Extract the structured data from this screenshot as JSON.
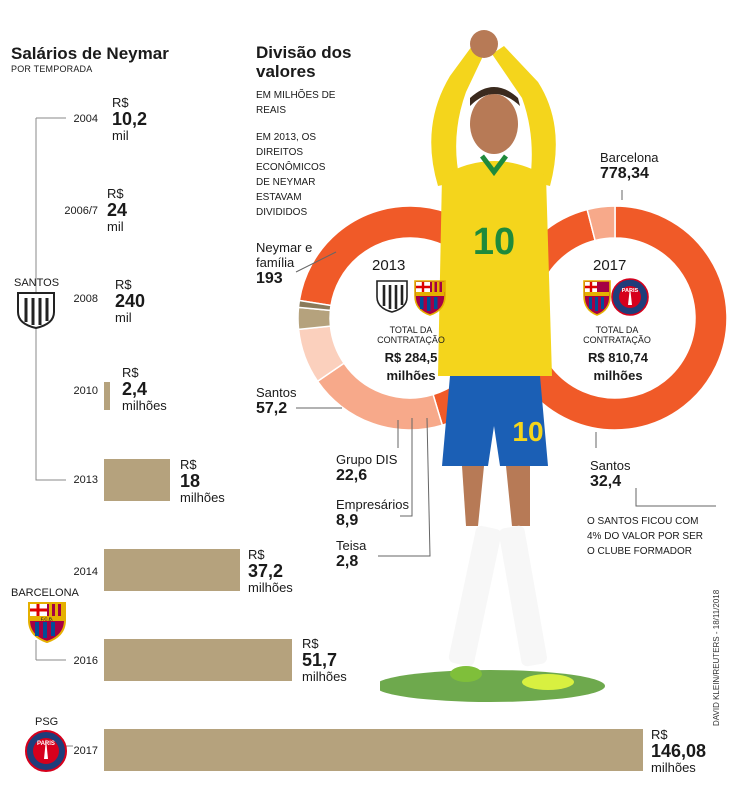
{
  "left": {
    "title": "Salários de Neymar",
    "subtitle": "POR TEMPORADA",
    "clubs": {
      "santos": "SANTOS",
      "barcelona": "BARCELONA",
      "psg": "PSG"
    },
    "currency": "R$",
    "entries": [
      {
        "season": "2004",
        "value": "10,2",
        "unit": "mil"
      },
      {
        "season": "2006/7",
        "value": "24",
        "unit": "mil"
      },
      {
        "season": "2008",
        "value": "240",
        "unit": "mil"
      },
      {
        "season": "2010",
        "value": "2,4",
        "unit": "milhões"
      },
      {
        "season": "2013",
        "value": "18",
        "unit": "milhões"
      },
      {
        "season": "2014",
        "value": "37,2",
        "unit": "milhões"
      },
      {
        "season": "2016",
        "value": "51,7",
        "unit": "milhões"
      },
      {
        "season": "2017",
        "value": "146,08",
        "unit": "milhões"
      }
    ]
  },
  "right": {
    "title": "Divisão dos valores",
    "note1": "EM MILHÕES DE REAIS",
    "note2": "EM 2013, OS DIREITOS ECONÔMICOS DE NEYMAR ESTAVAM DIVIDIDOS",
    "donut2013": {
      "year": "2013",
      "total_label": "TOTAL DA CONTRATAÇÃO",
      "total_value": "R$ 284,5",
      "total_unit": "milhões",
      "slices": [
        {
          "label": "Neymar e família",
          "value": "193"
        },
        {
          "label": "Santos",
          "value": "57,2"
        },
        {
          "label": "Grupo DIS",
          "value": "22,6"
        },
        {
          "label": "Empresários",
          "value": "8,9"
        },
        {
          "label": "Teisa",
          "value": "2,8"
        }
      ]
    },
    "donut2017": {
      "year": "2017",
      "total_label": "TOTAL DA CONTRATAÇÃO",
      "total_value": "R$ 810,74",
      "total_unit": "milhões",
      "slices": [
        {
          "label": "Barcelona",
          "value": "778,34"
        },
        {
          "label": "Santos",
          "value": "32,4"
        }
      ],
      "note": "O SANTOS FICOU COM 4% DO VALOR POR SER O CLUBE FORMADOR"
    },
    "crests": {
      "fcb": "F.C.B.",
      "paris": "PARIS"
    }
  },
  "credit": "DAVID KLEIN/REUTERS - 18/11/2018",
  "colors": {
    "bar": "#b5a27d",
    "orange": "#f05a28",
    "salmon": "#f7a98a",
    "pale": "#fbd0bd",
    "green": "#2d7a1f"
  },
  "chart_data": [
    {
      "type": "bar",
      "title": "Salários de Neymar",
      "subtitle": "POR TEMPORADA",
      "categories": [
        "2004",
        "2006/7",
        "2008",
        "2010",
        "2013",
        "2014",
        "2016",
        "2017"
      ],
      "values": [
        0.0102,
        0.024,
        0.24,
        2.4,
        18,
        37.2,
        51.7,
        146.08
      ],
      "unit": "R$ milhões",
      "groups": [
        {
          "club": "SANTOS",
          "categories": [
            "2004",
            "2006/7",
            "2008",
            "2010",
            "2013"
          ]
        },
        {
          "club": "BARCELONA",
          "categories": [
            "2014",
            "2016"
          ]
        },
        {
          "club": "PSG",
          "categories": [
            "2017"
          ]
        }
      ]
    },
    {
      "type": "pie",
      "title": "2013",
      "labels": [
        "Neymar e família",
        "Santos",
        "Grupo DIS",
        "Empresários",
        "Teisa"
      ],
      "values": [
        193,
        57.2,
        22.6,
        8.9,
        2.8
      ],
      "total": 284.5
    },
    {
      "type": "pie",
      "title": "2017",
      "labels": [
        "Barcelona",
        "Santos"
      ],
      "values": [
        778.34,
        32.4
      ],
      "total": 810.74
    }
  ]
}
